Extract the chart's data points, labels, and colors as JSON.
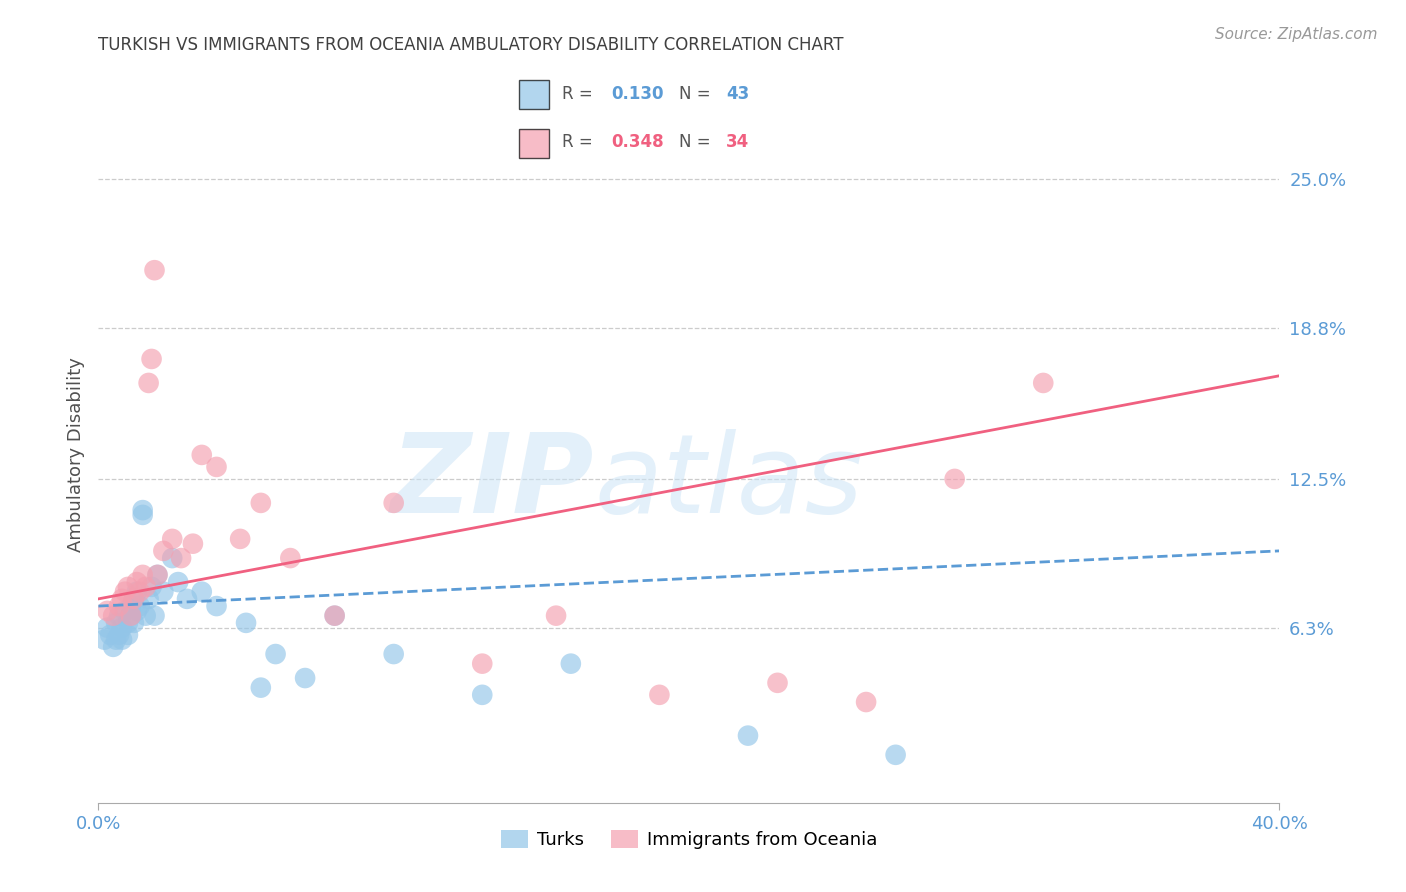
{
  "title": "TURKISH VS IMMIGRANTS FROM OCEANIA AMBULATORY DISABILITY CORRELATION CHART",
  "source": "Source: ZipAtlas.com",
  "ylabel": "Ambulatory Disability",
  "ytick_values": [
    0.063,
    0.125,
    0.188,
    0.25
  ],
  "ytick_labels": [
    "6.3%",
    "12.5%",
    "18.8%",
    "25.0%"
  ],
  "xmin": 0.0,
  "xmax": 0.4,
  "ymin": -0.01,
  "ymax": 0.28,
  "color_turks": "#92C5E8",
  "color_oceania": "#F4A0B0",
  "color_turks_line": "#5B9BD5",
  "color_oceania_line": "#F06080",
  "color_title": "#404040",
  "color_ytick": "#5B9BD5",
  "color_xtick": "#5B9BD5",
  "color_source": "#999999",
  "turks_x": [
    0.002,
    0.003,
    0.004,
    0.005,
    0.006,
    0.006,
    0.007,
    0.007,
    0.008,
    0.008,
    0.009,
    0.01,
    0.01,
    0.011,
    0.011,
    0.012,
    0.012,
    0.013,
    0.013,
    0.014,
    0.015,
    0.015,
    0.016,
    0.017,
    0.018,
    0.019,
    0.02,
    0.022,
    0.025,
    0.027,
    0.03,
    0.035,
    0.04,
    0.05,
    0.055,
    0.06,
    0.07,
    0.08,
    0.1,
    0.13,
    0.16,
    0.22,
    0.27
  ],
  "turks_y": [
    0.058,
    0.063,
    0.06,
    0.055,
    0.065,
    0.058,
    0.068,
    0.06,
    0.063,
    0.058,
    0.07,
    0.065,
    0.06,
    0.072,
    0.068,
    0.075,
    0.065,
    0.07,
    0.078,
    0.072,
    0.11,
    0.112,
    0.068,
    0.075,
    0.08,
    0.068,
    0.085,
    0.078,
    0.092,
    0.082,
    0.075,
    0.078,
    0.072,
    0.065,
    0.038,
    0.052,
    0.042,
    0.068,
    0.052,
    0.035,
    0.048,
    0.018,
    0.01
  ],
  "oceania_x": [
    0.003,
    0.005,
    0.007,
    0.008,
    0.009,
    0.01,
    0.011,
    0.012,
    0.013,
    0.014,
    0.015,
    0.016,
    0.017,
    0.018,
    0.019,
    0.02,
    0.022,
    0.025,
    0.028,
    0.032,
    0.035,
    0.04,
    0.048,
    0.055,
    0.065,
    0.08,
    0.1,
    0.13,
    0.155,
    0.19,
    0.23,
    0.26,
    0.29,
    0.32
  ],
  "oceania_y": [
    0.07,
    0.068,
    0.072,
    0.075,
    0.078,
    0.08,
    0.068,
    0.075,
    0.082,
    0.078,
    0.085,
    0.08,
    0.165,
    0.175,
    0.212,
    0.085,
    0.095,
    0.1,
    0.092,
    0.098,
    0.135,
    0.13,
    0.1,
    0.115,
    0.092,
    0.068,
    0.115,
    0.048,
    0.068,
    0.035,
    0.04,
    0.032,
    0.125,
    0.165
  ]
}
